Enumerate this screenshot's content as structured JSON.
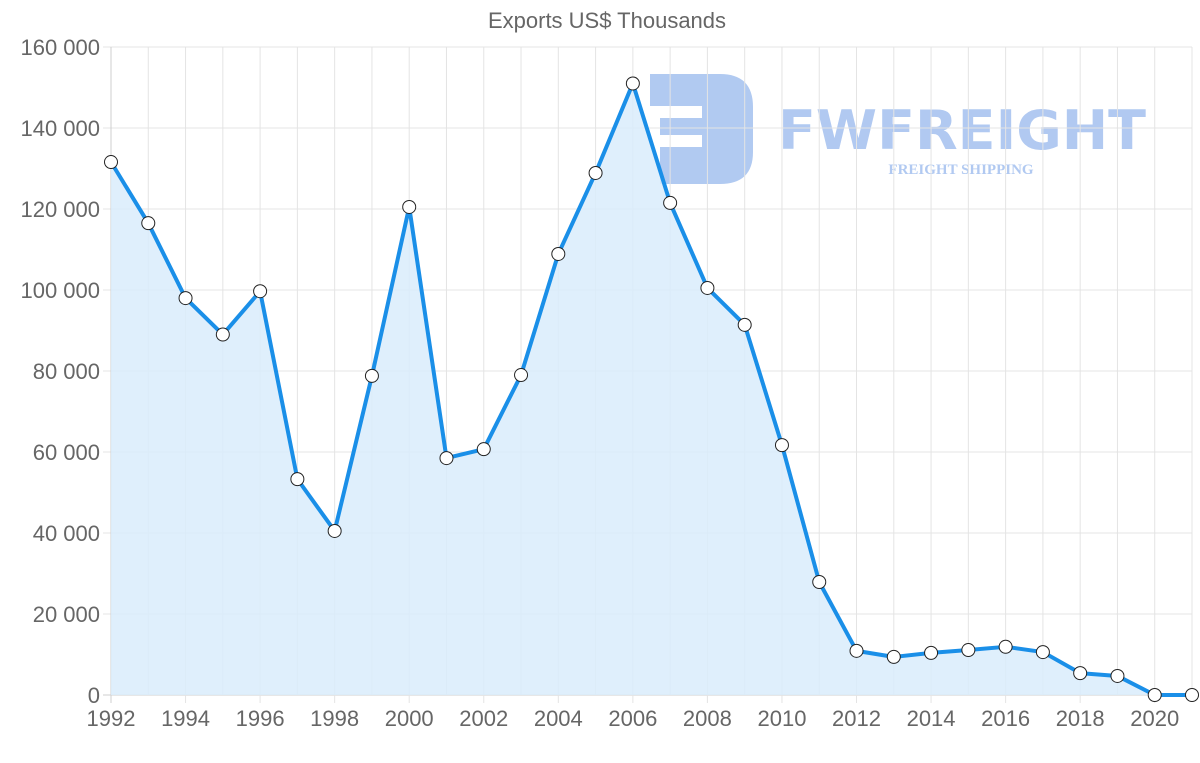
{
  "chart": {
    "title": "Exports US$ Thousands",
    "watermark": {
      "name": "FWFREIGHT",
      "tagline": "FREIGHT SHIPPING",
      "color": "#a9c4f0"
    },
    "line_color": "#1a8fe8",
    "fill_color": "#d9ecfc"
  },
  "chart_data": {
    "type": "area",
    "title": "Exports US$ Thousands",
    "xlabel": "",
    "ylabel": "",
    "x": [
      1992,
      1993,
      1994,
      1995,
      1996,
      1997,
      1998,
      1999,
      2000,
      2001,
      2002,
      2003,
      2004,
      2005,
      2006,
      2007,
      2008,
      2009,
      2010,
      2011,
      2012,
      2013,
      2014,
      2015,
      2016,
      2017,
      2018,
      2019,
      2020,
      2021
    ],
    "series": [
      {
        "name": "Exports US$ Thousands",
        "values": [
          131600,
          116500,
          98000,
          89000,
          99700,
          53300,
          40500,
          78800,
          120500,
          58500,
          60700,
          79000,
          108900,
          128900,
          151000,
          121500,
          100500,
          91400,
          61700,
          27900,
          10900,
          9400,
          10400,
          11100,
          11900,
          10600,
          5400,
          4700,
          0,
          0
        ]
      }
    ],
    "ylim": [
      0,
      160000
    ],
    "y_ticks": [
      "0",
      "20 000",
      "40 000",
      "60 000",
      "80 000",
      "100 000",
      "120 000",
      "140 000",
      "160 000"
    ],
    "x_ticks": [
      "1992",
      "1994",
      "1996",
      "1998",
      "2000",
      "2002",
      "2004",
      "2006",
      "2008",
      "2010",
      "2012",
      "2014",
      "2016",
      "2018",
      "2020"
    ],
    "grid": true,
    "legend": "none"
  }
}
